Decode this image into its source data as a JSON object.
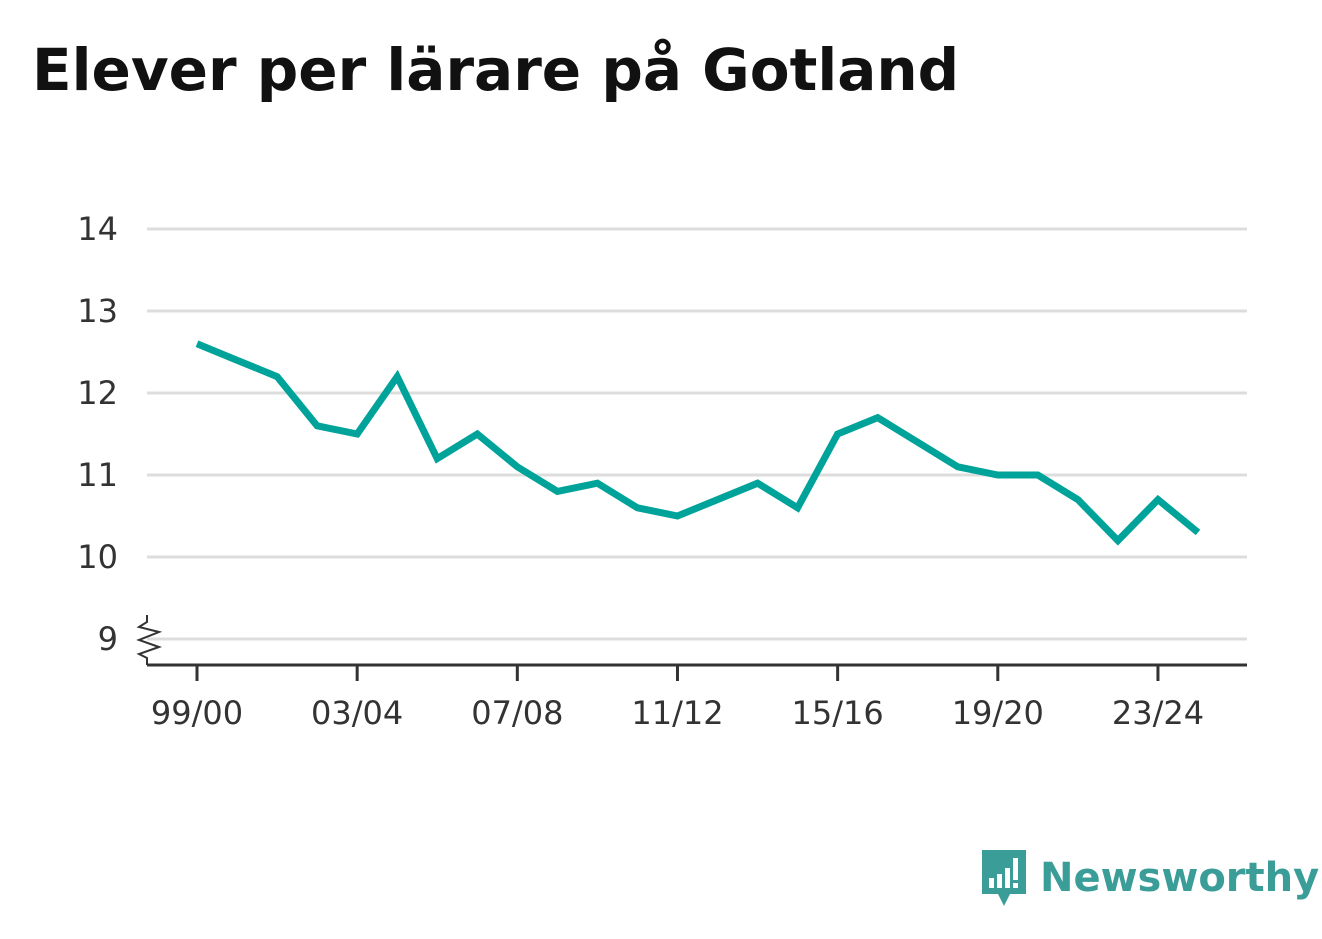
{
  "title": "Elever per lärare på Gotland",
  "brand": {
    "name": "Newsworthy",
    "color": "#3a9d98",
    "icon": "bar-chart-speech-bubble-icon"
  },
  "chart_data": {
    "type": "line",
    "title": "Elever per lärare på Gotland",
    "xlabel": "",
    "ylabel": "",
    "ylim": [
      9,
      14
    ],
    "y_axis_break": true,
    "yticks": [
      9,
      10,
      11,
      12,
      13,
      14
    ],
    "xticks": [
      "99/00",
      "03/04",
      "07/08",
      "11/12",
      "15/16",
      "19/20",
      "23/24"
    ],
    "grid": "horizontal",
    "line_color": "#00a39a",
    "x": [
      "99/00",
      "00/01",
      "01/02",
      "02/03",
      "03/04",
      "04/05",
      "05/06",
      "06/07",
      "07/08",
      "08/09",
      "09/10",
      "10/11",
      "11/12",
      "12/13",
      "13/14",
      "14/15",
      "15/16",
      "16/17",
      "17/18",
      "18/19",
      "19/20",
      "20/21",
      "21/22",
      "22/23",
      "23/24",
      "24/25"
    ],
    "series": [
      {
        "values": [
          12.6,
          12.4,
          12.2,
          11.6,
          11.5,
          12.2,
          11.2,
          11.5,
          11.1,
          10.8,
          10.9,
          10.6,
          10.5,
          10.7,
          10.9,
          10.6,
          11.5,
          11.7,
          11.4,
          11.1,
          11.0,
          11.0,
          10.7,
          10.2,
          10.7,
          10.3
        ]
      }
    ]
  }
}
